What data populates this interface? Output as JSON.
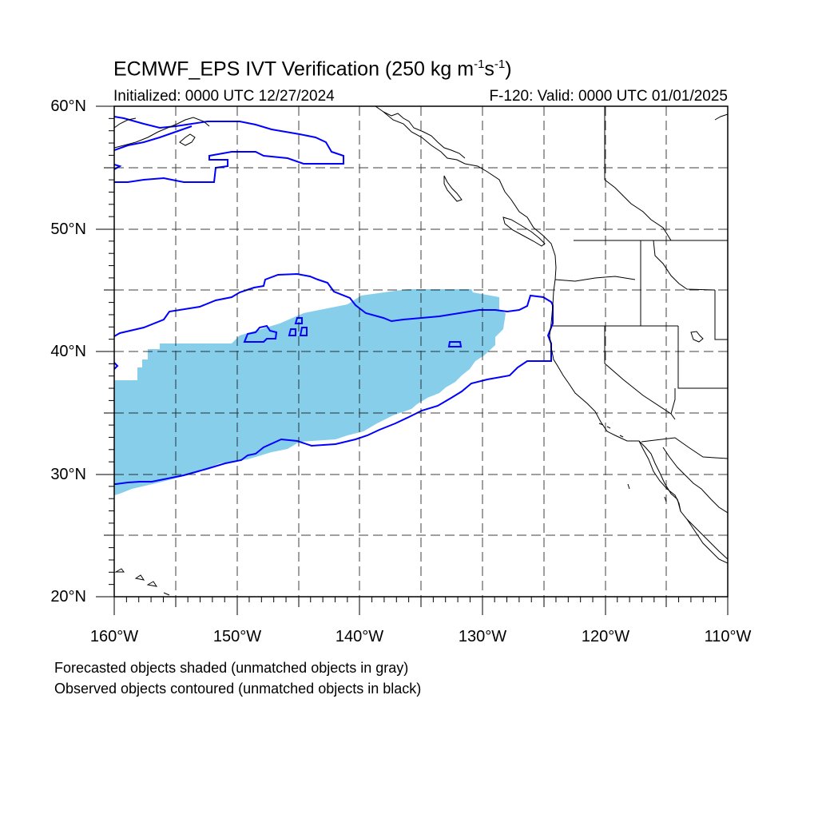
{
  "title": {
    "prefix": "ECMWF_EPS IVT Verification (250 kg m",
    "exp1": "-1",
    "mid": "s",
    "exp2": "-1",
    "suffix": ")"
  },
  "initialized": "Initialized: 0000 UTC 12/27/2024",
  "valid": "F-120: Valid: 0000 UTC 01/01/2025",
  "lat_labels": [
    "60°N",
    "50°N",
    "40°N",
    "30°N",
    "20°N"
  ],
  "lon_labels": [
    "160°W",
    "150°W",
    "140°W",
    "130°W",
    "120°W",
    "110°W"
  ],
  "footnotes": [
    "Forecasted objects shaded (unmatched objects in gray)",
    "Observed objects contoured (unmatched objects in black)"
  ],
  "colors": {
    "forecast_fill": "#87ceeb",
    "observed_contour": "#0000ff",
    "coastline": "#000000",
    "grid": "#000000"
  },
  "map_extent": {
    "lon_min": -160,
    "lon_max": -110,
    "lat_min": 20,
    "lat_max": 60
  }
}
